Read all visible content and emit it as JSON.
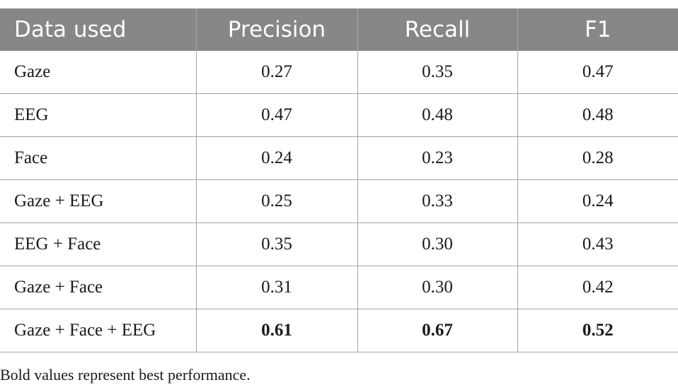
{
  "table": {
    "headers": [
      "Data used",
      "Precision",
      "Recall",
      "F1"
    ],
    "rows": [
      {
        "data_used": "Gaze",
        "precision": "0.27",
        "recall": "0.35",
        "f1": "0.47"
      },
      {
        "data_used": "EEG",
        "precision": "0.47",
        "recall": "0.48",
        "f1": "0.48"
      },
      {
        "data_used": "Face",
        "precision": "0.24",
        "recall": "0.23",
        "f1": "0.28"
      },
      {
        "data_used": "Gaze + EEG",
        "precision": "0.25",
        "recall": "0.33",
        "f1": "0.24"
      },
      {
        "data_used": "EEG + Face",
        "precision": "0.35",
        "recall": "0.30",
        "f1": "0.43"
      },
      {
        "data_used": "Gaze + Face",
        "precision": "0.31",
        "recall": "0.30",
        "f1": "0.42"
      },
      {
        "data_used": "Gaze + Face + EEG",
        "precision": "0.61",
        "recall": "0.67",
        "f1": "0.52"
      }
    ],
    "bold_row_index": 6
  },
  "footnote": "Bold values represent best performance."
}
